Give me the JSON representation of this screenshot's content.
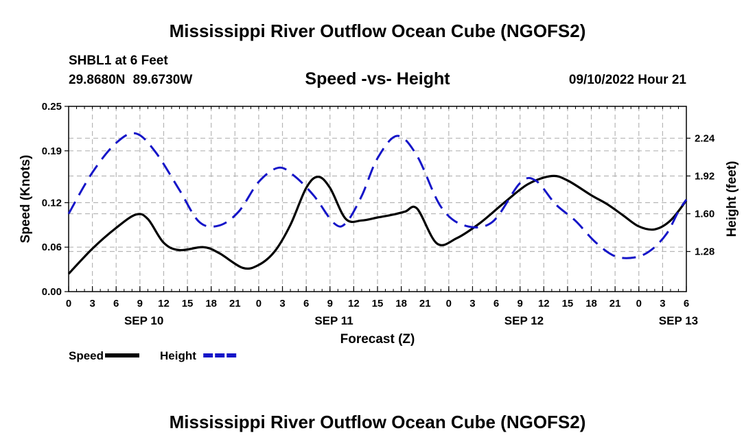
{
  "header": {
    "title": "Mississippi River Outflow Ocean Cube (NGOFS2)",
    "station": "SHBL1 at 6 Feet",
    "coordinates": "29.8680N  89.6730W",
    "subtitle": "Speed -vs- Height",
    "datetime": "09/10/2022 Hour 21"
  },
  "footer": {
    "title": "Mississippi River Outflow Ocean Cube (NGOFS2)"
  },
  "chart_data": {
    "type": "line",
    "title": "Speed -vs- Height",
    "xlabel": "Forecast (Z)",
    "ylabel": "Speed (Knots)",
    "y2label": "Height (feet)",
    "x_range_hours": [
      0,
      78
    ],
    "x_tick_step_hours": 3,
    "x_tick_labels": [
      "0",
      "3",
      "6",
      "9",
      "12",
      "15",
      "18",
      "21",
      "0",
      "3",
      "6",
      "9",
      "12",
      "15",
      "18",
      "21",
      "0",
      "3",
      "6",
      "9",
      "12",
      "15",
      "18",
      "21",
      "0",
      "3",
      "6"
    ],
    "date_labels": [
      {
        "label": "SEP 10",
        "hour": 9.5
      },
      {
        "label": "SEP 11",
        "hour": 33.5
      },
      {
        "label": "SEP 12",
        "hour": 57.5
      },
      {
        "label": "SEP 13",
        "hour": 77
      }
    ],
    "ylim": [
      0,
      0.25
    ],
    "y_ticks": [
      0.0,
      0.06,
      0.12,
      0.19,
      0.25
    ],
    "y_tick_labels": [
      "0.00",
      "0.06",
      "0.12",
      "0.19",
      "0.25"
    ],
    "y2lim": [
      0.94,
      2.51
    ],
    "y2_ticks": [
      1.28,
      1.6,
      1.92,
      2.24
    ],
    "y2_tick_labels": [
      "1.28",
      "1.60",
      "1.92",
      "2.24"
    ],
    "grid": true,
    "legend_position": "bottom-left",
    "series": [
      {
        "name": "Speed",
        "axis": "left",
        "color": "#000000",
        "dash": "solid",
        "x": [
          0,
          3,
          6,
          8.5,
          10,
          12,
          14,
          17,
          19,
          22,
          24,
          26,
          28,
          30,
          31.5,
          33,
          35,
          37,
          39,
          41,
          42.5,
          44,
          46.5,
          49,
          52,
          55,
          58,
          61,
          63,
          66,
          68,
          70,
          72,
          74,
          76,
          78
        ],
        "values": [
          0.024,
          0.058,
          0.086,
          0.104,
          0.098,
          0.066,
          0.056,
          0.06,
          0.052,
          0.032,
          0.036,
          0.054,
          0.09,
          0.14,
          0.155,
          0.14,
          0.098,
          0.096,
          0.1,
          0.104,
          0.108,
          0.112,
          0.065,
          0.072,
          0.093,
          0.12,
          0.145,
          0.156,
          0.15,
          0.13,
          0.118,
          0.103,
          0.088,
          0.084,
          0.096,
          0.123
        ]
      },
      {
        "name": "Height",
        "axis": "right",
        "color": "#1515c8",
        "dash": "dashed",
        "x": [
          0,
          3,
          6,
          8.5,
          11,
          14,
          16.5,
          19,
          21.5,
          24,
          26.5,
          28.5,
          31,
          33.5,
          35,
          37,
          39,
          41.5,
          44,
          47,
          50,
          53.5,
          57,
          59,
          61.5,
          64,
          66.5,
          69,
          71.5,
          73.5,
          75.5,
          77,
          78
        ],
        "values": [
          1.6,
          1.95,
          2.2,
          2.28,
          2.12,
          1.8,
          1.53,
          1.5,
          1.62,
          1.87,
          1.99,
          1.92,
          1.75,
          1.52,
          1.52,
          1.75,
          2.07,
          2.26,
          2.09,
          1.66,
          1.5,
          1.53,
          1.86,
          1.88,
          1.68,
          1.54,
          1.36,
          1.24,
          1.23,
          1.29,
          1.43,
          1.62,
          1.72
        ]
      }
    ]
  }
}
